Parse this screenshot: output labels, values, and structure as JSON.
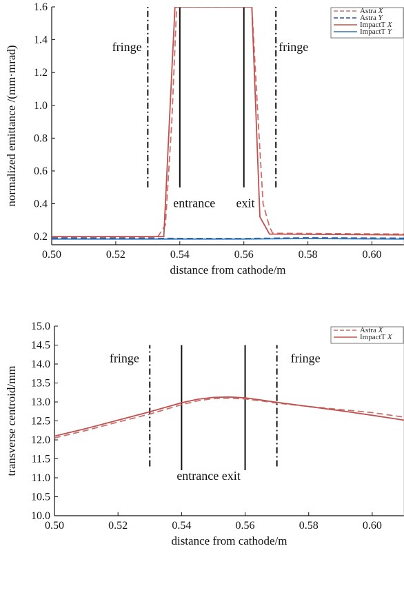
{
  "chart_data": [
    {
      "type": "line",
      "xlabel": "distance from cathode/m",
      "ylabel": "normalized emittance /(mm·mrad)",
      "xlim": [
        0.5,
        0.61
      ],
      "ylim": [
        0.15,
        1.6
      ],
      "xticks": [
        0.5,
        0.52,
        0.54,
        0.56,
        0.58,
        0.6
      ],
      "xtick_labels": [
        "0.50",
        "0.52",
        "0.54",
        "0.56",
        "0.58",
        "0.60"
      ],
      "yticks": [
        0.2,
        0.4,
        0.6,
        0.8,
        1.0,
        1.2,
        1.4,
        1.6
      ],
      "ytick_labels": [
        "0.2",
        "0.4",
        "0.6",
        "0.8",
        "1.0",
        "1.2",
        "1.4",
        "1.6"
      ],
      "legend_position": "top-right",
      "series": [
        {
          "name": "Astra X",
          "color": "#cc6f6c",
          "dash": "dashed",
          "x": [
            0.5,
            0.533,
            0.5355,
            0.5375,
            0.539,
            0.5625,
            0.5645,
            0.566,
            0.568,
            0.569,
            0.61
          ],
          "y": [
            0.195,
            0.195,
            0.27,
            0.9,
            1.6,
            1.6,
            0.9,
            0.4,
            0.26,
            0.22,
            0.215
          ]
        },
        {
          "name": "Astra Y",
          "color": "#2f4fa0",
          "dash": "dashed",
          "x": [
            0.5,
            0.56,
            0.58,
            0.61
          ],
          "y": [
            0.19,
            0.188,
            0.192,
            0.19
          ]
        },
        {
          "name": "ImpactT X",
          "color": "#c0504d",
          "dash": "solid",
          "x": [
            0.5,
            0.535,
            0.5385,
            0.5625,
            0.565,
            0.568,
            0.61
          ],
          "y": [
            0.2,
            0.2,
            1.6,
            1.6,
            0.32,
            0.215,
            0.21
          ]
        },
        {
          "name": "ImpactT Y",
          "color": "#2e75b6",
          "dash": "solid",
          "x": [
            0.5,
            0.56,
            0.58,
            0.61
          ],
          "y": [
            0.185,
            0.185,
            0.188,
            0.185
          ]
        }
      ],
      "markers": [
        {
          "x": 0.53,
          "style": "dashdot",
          "y": [
            0.5,
            1.6
          ]
        },
        {
          "x": 0.54,
          "style": "solid",
          "y": [
            0.5,
            1.6
          ]
        },
        {
          "x": 0.56,
          "style": "solid",
          "y": [
            0.5,
            1.6
          ]
        },
        {
          "x": 0.57,
          "style": "dashdot",
          "y": [
            0.5,
            1.6
          ]
        }
      ],
      "annotations": [
        {
          "text": "fringe",
          "x": 0.5235,
          "y": 1.33
        },
        {
          "text": "fringe",
          "x": 0.5755,
          "y": 1.33
        },
        {
          "text": "entrance",
          "x": 0.5445,
          "y": 0.38
        },
        {
          "text": "exit",
          "x": 0.5605,
          "y": 0.38
        }
      ]
    },
    {
      "type": "line",
      "xlabel": "distance from cathode/m",
      "ylabel": "transverse centroid/mm",
      "xlim": [
        0.5,
        0.61
      ],
      "ylim": [
        10.0,
        15.0
      ],
      "xticks": [
        0.5,
        0.52,
        0.54,
        0.56,
        0.58,
        0.6
      ],
      "xtick_labels": [
        "0.50",
        "0.52",
        "0.54",
        "0.56",
        "0.58",
        "0.60"
      ],
      "yticks": [
        10.0,
        10.5,
        11.0,
        11.5,
        12.0,
        12.5,
        13.0,
        13.5,
        14.0,
        14.5,
        15.0
      ],
      "ytick_labels": [
        "10.0",
        "10.5",
        "11.0",
        "11.5",
        "12.0",
        "12.5",
        "13.0",
        "13.5",
        "14.0",
        "14.5",
        "15.0"
      ],
      "legend_position": "top-right",
      "series": [
        {
          "name": "Astra X",
          "color": "#cc6f6c",
          "dash": "dashed",
          "x": [
            0.5,
            0.51,
            0.52,
            0.53,
            0.54,
            0.545,
            0.55,
            0.555,
            0.56,
            0.565,
            0.57,
            0.58,
            0.59,
            0.6,
            0.61
          ],
          "y": [
            12.05,
            12.25,
            12.47,
            12.68,
            12.93,
            13.03,
            13.09,
            13.1,
            13.08,
            13.03,
            12.97,
            12.88,
            12.8,
            12.72,
            12.6
          ]
        },
        {
          "name": "ImpactT X",
          "color": "#c0504d",
          "dash": "solid",
          "x": [
            0.5,
            0.51,
            0.52,
            0.53,
            0.54,
            0.545,
            0.55,
            0.555,
            0.56,
            0.565,
            0.57,
            0.58,
            0.59,
            0.6,
            0.61
          ],
          "y": [
            12.1,
            12.3,
            12.52,
            12.74,
            12.98,
            13.07,
            13.12,
            13.13,
            13.11,
            13.05,
            12.99,
            12.88,
            12.77,
            12.65,
            12.52
          ]
        }
      ],
      "markers": [
        {
          "x": 0.53,
          "style": "dashdot",
          "y": [
            11.3,
            14.5
          ]
        },
        {
          "x": 0.54,
          "style": "solid",
          "y": [
            11.2,
            14.5
          ]
        },
        {
          "x": 0.56,
          "style": "solid",
          "y": [
            11.2,
            14.5
          ]
        },
        {
          "x": 0.57,
          "style": "dashdot",
          "y": [
            11.3,
            14.5
          ]
        }
      ],
      "annotations": [
        {
          "text": "fringe",
          "x": 0.522,
          "y": 14.05
        },
        {
          "text": "fringe",
          "x": 0.579,
          "y": 14.05
        },
        {
          "text": "entrance exit",
          "x": 0.5485,
          "y": 10.95
        }
      ]
    }
  ]
}
